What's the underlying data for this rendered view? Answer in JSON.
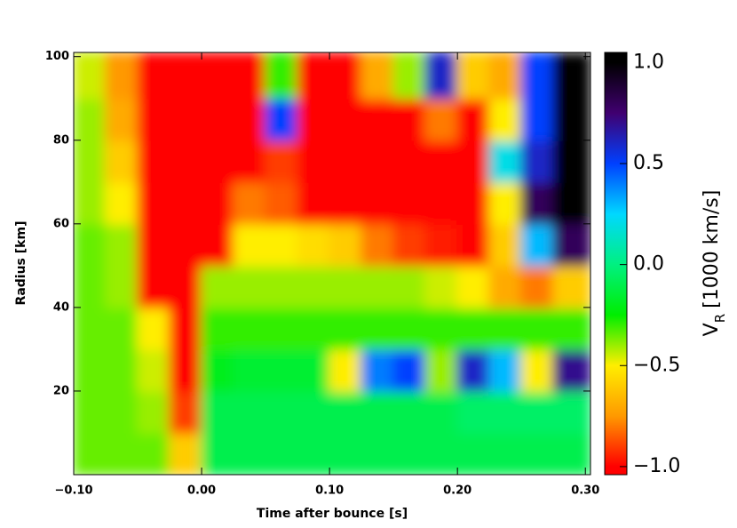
{
  "chart_data": {
    "type": "heatmap",
    "x_label": "Time after bounce [s]",
    "y_label": "Radius [km]",
    "colorbar_label": {
      "symbol": "V",
      "subscript": "R",
      "unit": "[1000 km/s]"
    },
    "x_bins": [
      -0.1,
      -0.075,
      -0.05,
      -0.025,
      0.0,
      0.025,
      0.05,
      0.075,
      0.1,
      0.125,
      0.15,
      0.175,
      0.2,
      0.225,
      0.25,
      0.275,
      0.304
    ],
    "y_bins": [
      0,
      10,
      20,
      30,
      40,
      50,
      60,
      70,
      80,
      90,
      101
    ],
    "z": [
      [
        -0.35,
        -0.35,
        -0.35,
        -0.6,
        -0.1,
        -0.1,
        -0.1,
        -0.1,
        -0.1,
        -0.1,
        -0.1,
        -0.1,
        -0.1,
        -0.1,
        -0.1,
        -0.1
      ],
      [
        -0.35,
        -0.35,
        -0.4,
        -0.9,
        -0.1,
        -0.1,
        -0.1,
        -0.1,
        -0.1,
        -0.1,
        -0.1,
        -0.1,
        -0.05,
        -0.05,
        -0.05,
        -0.05
      ],
      [
        -0.35,
        -0.35,
        -0.45,
        -1.0,
        -0.2,
        -0.15,
        -0.15,
        -0.15,
        -0.5,
        0.4,
        0.5,
        -0.4,
        0.6,
        0.3,
        -0.5,
        0.7
      ],
      [
        -0.35,
        -0.35,
        -0.5,
        -1.0,
        -0.3,
        -0.3,
        -0.3,
        -0.3,
        -0.3,
        -0.3,
        -0.3,
        -0.3,
        -0.3,
        -0.3,
        -0.3,
        -0.3
      ],
      [
        -0.35,
        -0.4,
        -1.0,
        -1.0,
        -0.4,
        -0.4,
        -0.4,
        -0.4,
        -0.4,
        -0.4,
        -0.4,
        -0.45,
        -0.5,
        -0.7,
        -0.8,
        -0.6
      ],
      [
        -0.35,
        -0.4,
        -1.0,
        -1.0,
        -1.0,
        -0.5,
        -0.5,
        -0.55,
        -0.6,
        -0.8,
        -0.9,
        -0.95,
        -1.0,
        -0.6,
        0.3,
        0.8
      ],
      [
        -0.4,
        -0.5,
        -1.0,
        -1.0,
        -1.0,
        -0.8,
        -0.85,
        -1.0,
        -1.0,
        -1.0,
        -1.0,
        -1.0,
        -1.0,
        -0.5,
        0.8,
        1.0
      ],
      [
        -0.4,
        -0.6,
        -1.0,
        -1.0,
        -1.0,
        -1.0,
        -0.9,
        -1.0,
        -1.0,
        -1.0,
        -1.0,
        -1.0,
        -1.0,
        0.2,
        0.6,
        1.0
      ],
      [
        -0.4,
        -0.7,
        -1.0,
        -1.0,
        -1.0,
        -1.0,
        0.5,
        -1.0,
        -1.0,
        -1.0,
        -1.0,
        -0.8,
        -1.0,
        -0.5,
        0.5,
        1.0
      ],
      [
        -0.45,
        -0.75,
        -1.0,
        -1.0,
        -1.0,
        -1.0,
        -0.3,
        -1.0,
        -1.0,
        -0.7,
        -0.4,
        0.6,
        -0.6,
        -0.7,
        0.5,
        1.0
      ]
    ],
    "colorscale": [
      [
        -1.0,
        "#ff0000"
      ],
      [
        -0.75,
        "#ff9900"
      ],
      [
        -0.5,
        "#ffee00"
      ],
      [
        -0.25,
        "#00ee00"
      ],
      [
        0.0,
        "#00f080"
      ],
      [
        0.25,
        "#00d8ff"
      ],
      [
        0.5,
        "#0040ff"
      ],
      [
        0.75,
        "#400070"
      ],
      [
        1.0,
        "#000000"
      ]
    ],
    "xlim": [
      -0.1,
      0.304
    ],
    "ylim": [
      0,
      101
    ],
    "clim": [
      -1.04,
      1.05
    ],
    "xticks": [
      {
        "value": -0.1,
        "label": "−0.10"
      },
      {
        "value": 0.0,
        "label": "0.00"
      },
      {
        "value": 0.1,
        "label": "0.10"
      },
      {
        "value": 0.2,
        "label": "0.20"
      },
      {
        "value": 0.3,
        "label": "0.30"
      }
    ],
    "yticks": [
      20,
      40,
      60,
      80,
      100
    ],
    "cticks": [
      {
        "value": 1.0,
        "label": "1.0"
      },
      {
        "value": 0.5,
        "label": "0.5"
      },
      {
        "value": 0.0,
        "label": "0.0"
      },
      {
        "value": -0.5,
        "label": "−0.5"
      },
      {
        "value": -1.0,
        "label": "−1.0"
      }
    ]
  }
}
